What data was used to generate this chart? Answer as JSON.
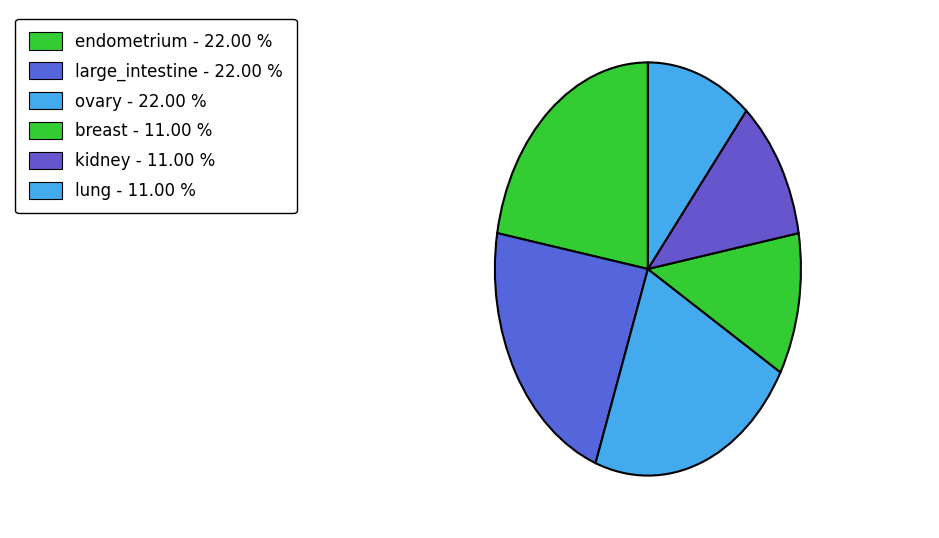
{
  "labels": [
    "endometrium",
    "large_intestine",
    "ovary",
    "breast",
    "kidney",
    "lung"
  ],
  "values": [
    22.0,
    22.0,
    22.0,
    11.0,
    11.0,
    11.0
  ],
  "colors": [
    "#33cc33",
    "#5566dd",
    "#44aaee",
    "#33cc33",
    "#6655cc",
    "#44aaee"
  ],
  "legend_labels": [
    "endometrium - 22.00 %",
    "large_intestine - 22.00 %",
    "ovary - 22.00 %",
    "breast - 11.00 %",
    "kidney - 11.00 %",
    "lung - 11.00 %"
  ],
  "legend_colors": [
    "#33cc33",
    "#5566dd",
    "#44aaee",
    "#33cc33",
    "#6655cc",
    "#44aaee"
  ],
  "startangle": 90,
  "background_color": "#ffffff",
  "figsize": [
    9.39,
    5.38
  ],
  "dpi": 100
}
